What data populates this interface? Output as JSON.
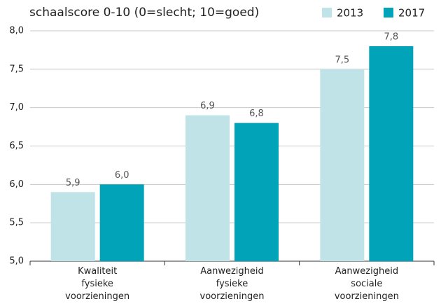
{
  "chart_data": {
    "type": "bar",
    "subtitle": "schaalscore 0-10 (0=slecht; 10=goed)",
    "categories": [
      "Kwaliteit fysieke voorzieningen",
      "Aanwezigheid fysieke voorzieningen",
      "Aanwezigheid sociale voorzieningen"
    ],
    "series": [
      {
        "name": "2013",
        "color": "#bfe3e6",
        "values": [
          5.9,
          6.9,
          7.5
        ],
        "value_labels": [
          "5,9",
          "6,9",
          "7,5"
        ]
      },
      {
        "name": "2017",
        "color": "#00a3b8",
        "values": [
          6.0,
          6.8,
          7.8
        ],
        "value_labels": [
          "6,0",
          "6,8",
          "7,8"
        ]
      }
    ],
    "ylim": [
      5,
      8
    ],
    "yticks": [
      {
        "value": 5,
        "label": "5,0"
      },
      {
        "value": 5.5,
        "label": "5,5"
      },
      {
        "value": 6,
        "label": "6,0"
      },
      {
        "value": 6.5,
        "label": "6,5"
      },
      {
        "value": 7,
        "label": "7,0"
      },
      {
        "value": 7.5,
        "label": "7,5"
      },
      {
        "value": 8,
        "label": "8,0"
      }
    ],
    "grid": true,
    "legend": "top-right"
  }
}
